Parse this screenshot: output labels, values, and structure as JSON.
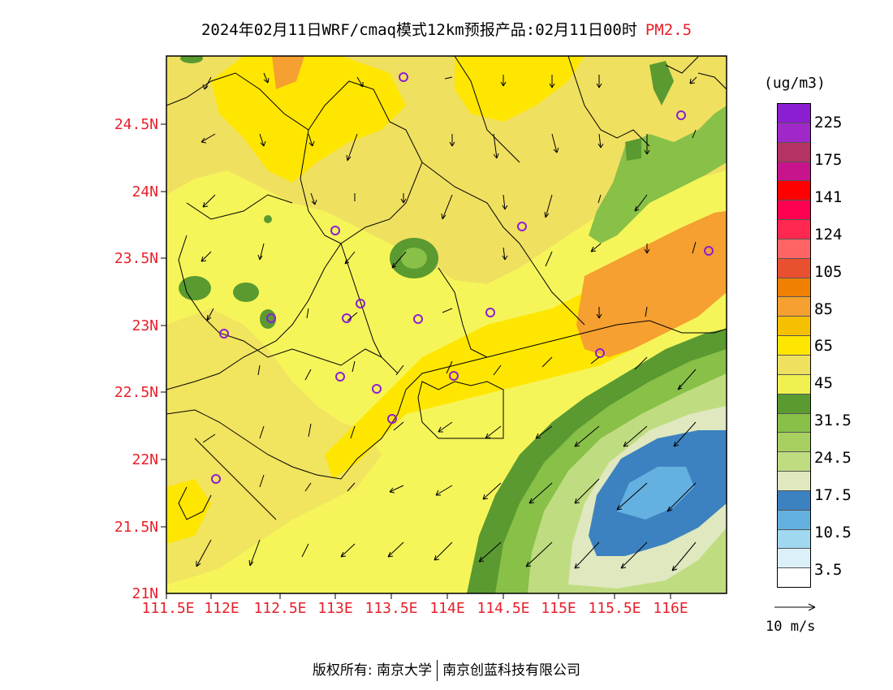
{
  "title": {
    "text": "2024年02月11日WRF/cmaq模式12km预报产品:02月11日00时",
    "pollutant": "PM2.5",
    "pollutant_color": "#e8202a"
  },
  "axes": {
    "lat_labels": [
      "24.5N",
      "24N",
      "23.5N",
      "23N",
      "22.5N",
      "22N",
      "21.5N",
      "21N"
    ],
    "lon_labels": [
      "111.5E",
      "112E",
      "112.5E",
      "113E",
      "113.5E",
      "114E",
      "114.5E",
      "115E",
      "115.5E",
      "116E"
    ],
    "label_color": "#e8202a"
  },
  "colorbar": {
    "units": "(ug/m3)",
    "colors": [
      "#ffffff",
      "#dcf0fa",
      "#a0d8f0",
      "#64b0e0",
      "#3c82c0",
      "#e0e8c0",
      "#c0dc80",
      "#a8d060",
      "#88c048",
      "#5a9a30",
      "#f0f050",
      "#f0e060",
      "#ffe600",
      "#f5c000",
      "#f5a030",
      "#f08000",
      "#e85030",
      "#ff6464",
      "#ff2850",
      "#ff0050",
      "#ff0000",
      "#c8148c",
      "#b43264",
      "#a028c8",
      "#8c1ed2"
    ],
    "labels": [
      "225",
      "175",
      "141",
      "124",
      "105",
      "85",
      "65",
      "45",
      "31.5",
      "24.5",
      "17.5",
      "10.5",
      "3.5"
    ]
  },
  "wind_reference": {
    "label": "10 m/s"
  },
  "footer": {
    "copyright": "版权所有: 南京大学",
    "company": "南京创蓝科技有限公司"
  },
  "map": {
    "colors": {
      "base_yellow": "#f5f55a",
      "light_orange": "#f0e060",
      "yellow": "#ffe600",
      "orange": "#f5a030",
      "green_dark": "#5a9a30",
      "green_mid": "#88c048",
      "green_light": "#c0dc80",
      "pale": "#e0e8c0",
      "blue": "#3c82c0",
      "light_blue": "#64b0e0",
      "station": "#8c1ed2"
    }
  }
}
